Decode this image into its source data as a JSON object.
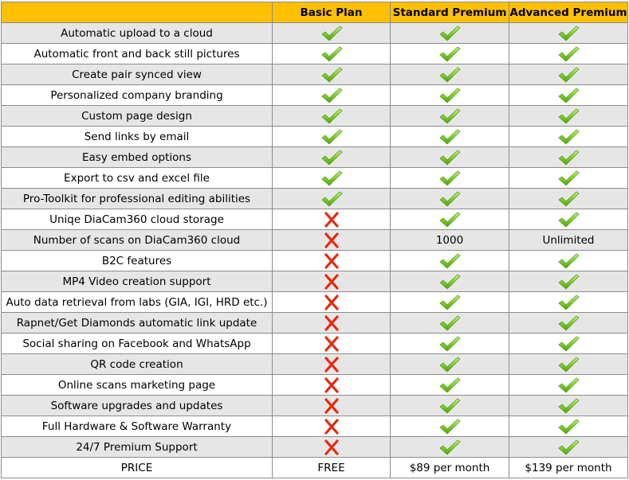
{
  "header": {
    "feature_col": "",
    "plans": [
      "Basic Plan",
      "Standard Premium",
      "Advanced Premium"
    ]
  },
  "rows": [
    {
      "feature": "Automatic upload to a cloud",
      "values": [
        "check",
        "check",
        "check"
      ]
    },
    {
      "feature": "Automatic front and back still pictures",
      "values": [
        "check",
        "check",
        "check"
      ]
    },
    {
      "feature": "Create pair synced view",
      "values": [
        "check",
        "check",
        "check"
      ]
    },
    {
      "feature": "Personalized company branding",
      "values": [
        "check",
        "check",
        "check"
      ]
    },
    {
      "feature": "Custom page design",
      "values": [
        "check",
        "check",
        "check"
      ]
    },
    {
      "feature": "Send links by email",
      "values": [
        "check",
        "check",
        "check"
      ]
    },
    {
      "feature": "Easy embed options",
      "values": [
        "check",
        "check",
        "check"
      ]
    },
    {
      "feature": "Export to csv and excel file",
      "values": [
        "check",
        "check",
        "check"
      ]
    },
    {
      "feature": "Pro-Toolkit for professional editing abilities",
      "values": [
        "check",
        "check",
        "check"
      ]
    },
    {
      "feature": "Uniqe DiaCam360 cloud storage",
      "values": [
        "cross",
        "check",
        "check"
      ]
    },
    {
      "feature": "Number of scans on DiaCam360 cloud",
      "values": [
        "cross",
        "1000",
        "Unlimited"
      ]
    },
    {
      "feature": "B2C features",
      "values": [
        "cross",
        "check",
        "check"
      ]
    },
    {
      "feature": "MP4 Video creation support",
      "values": [
        "cross",
        "check",
        "check"
      ]
    },
    {
      "feature": "Auto data retrieval from labs (GIA, IGI, HRD etc.)",
      "values": [
        "cross",
        "check",
        "check"
      ]
    },
    {
      "feature": "Rapnet/Get Diamonds automatic link update",
      "values": [
        "cross",
        "check",
        "check"
      ]
    },
    {
      "feature": "Social sharing on Facebook and WhatsApp",
      "values": [
        "cross",
        "check",
        "check"
      ]
    },
    {
      "feature": "QR code creation",
      "values": [
        "cross",
        "check",
        "check"
      ]
    },
    {
      "feature": "Online scans marketing page",
      "values": [
        "cross",
        "check",
        "check"
      ]
    },
    {
      "feature": "Software upgrades and updates",
      "values": [
        "cross",
        "check",
        "check"
      ]
    },
    {
      "feature": "Full Hardware & Software Warranty",
      "values": [
        "cross",
        "check",
        "check"
      ]
    },
    {
      "feature": "24/7 Premium Support",
      "values": [
        "cross",
        "check",
        "check"
      ]
    }
  ],
  "price_row": {
    "label": "PRICE",
    "values": [
      "FREE",
      "$89 per month",
      "$139 per month"
    ]
  },
  "icons": {
    "check": "check-mark-icon",
    "cross": "cross-mark-icon"
  },
  "colors": {
    "header_bg": "#ffc000",
    "stripe_bg": "#e6e6e6",
    "check_green": "#6cc51c",
    "cross_red": "#e8280b"
  }
}
